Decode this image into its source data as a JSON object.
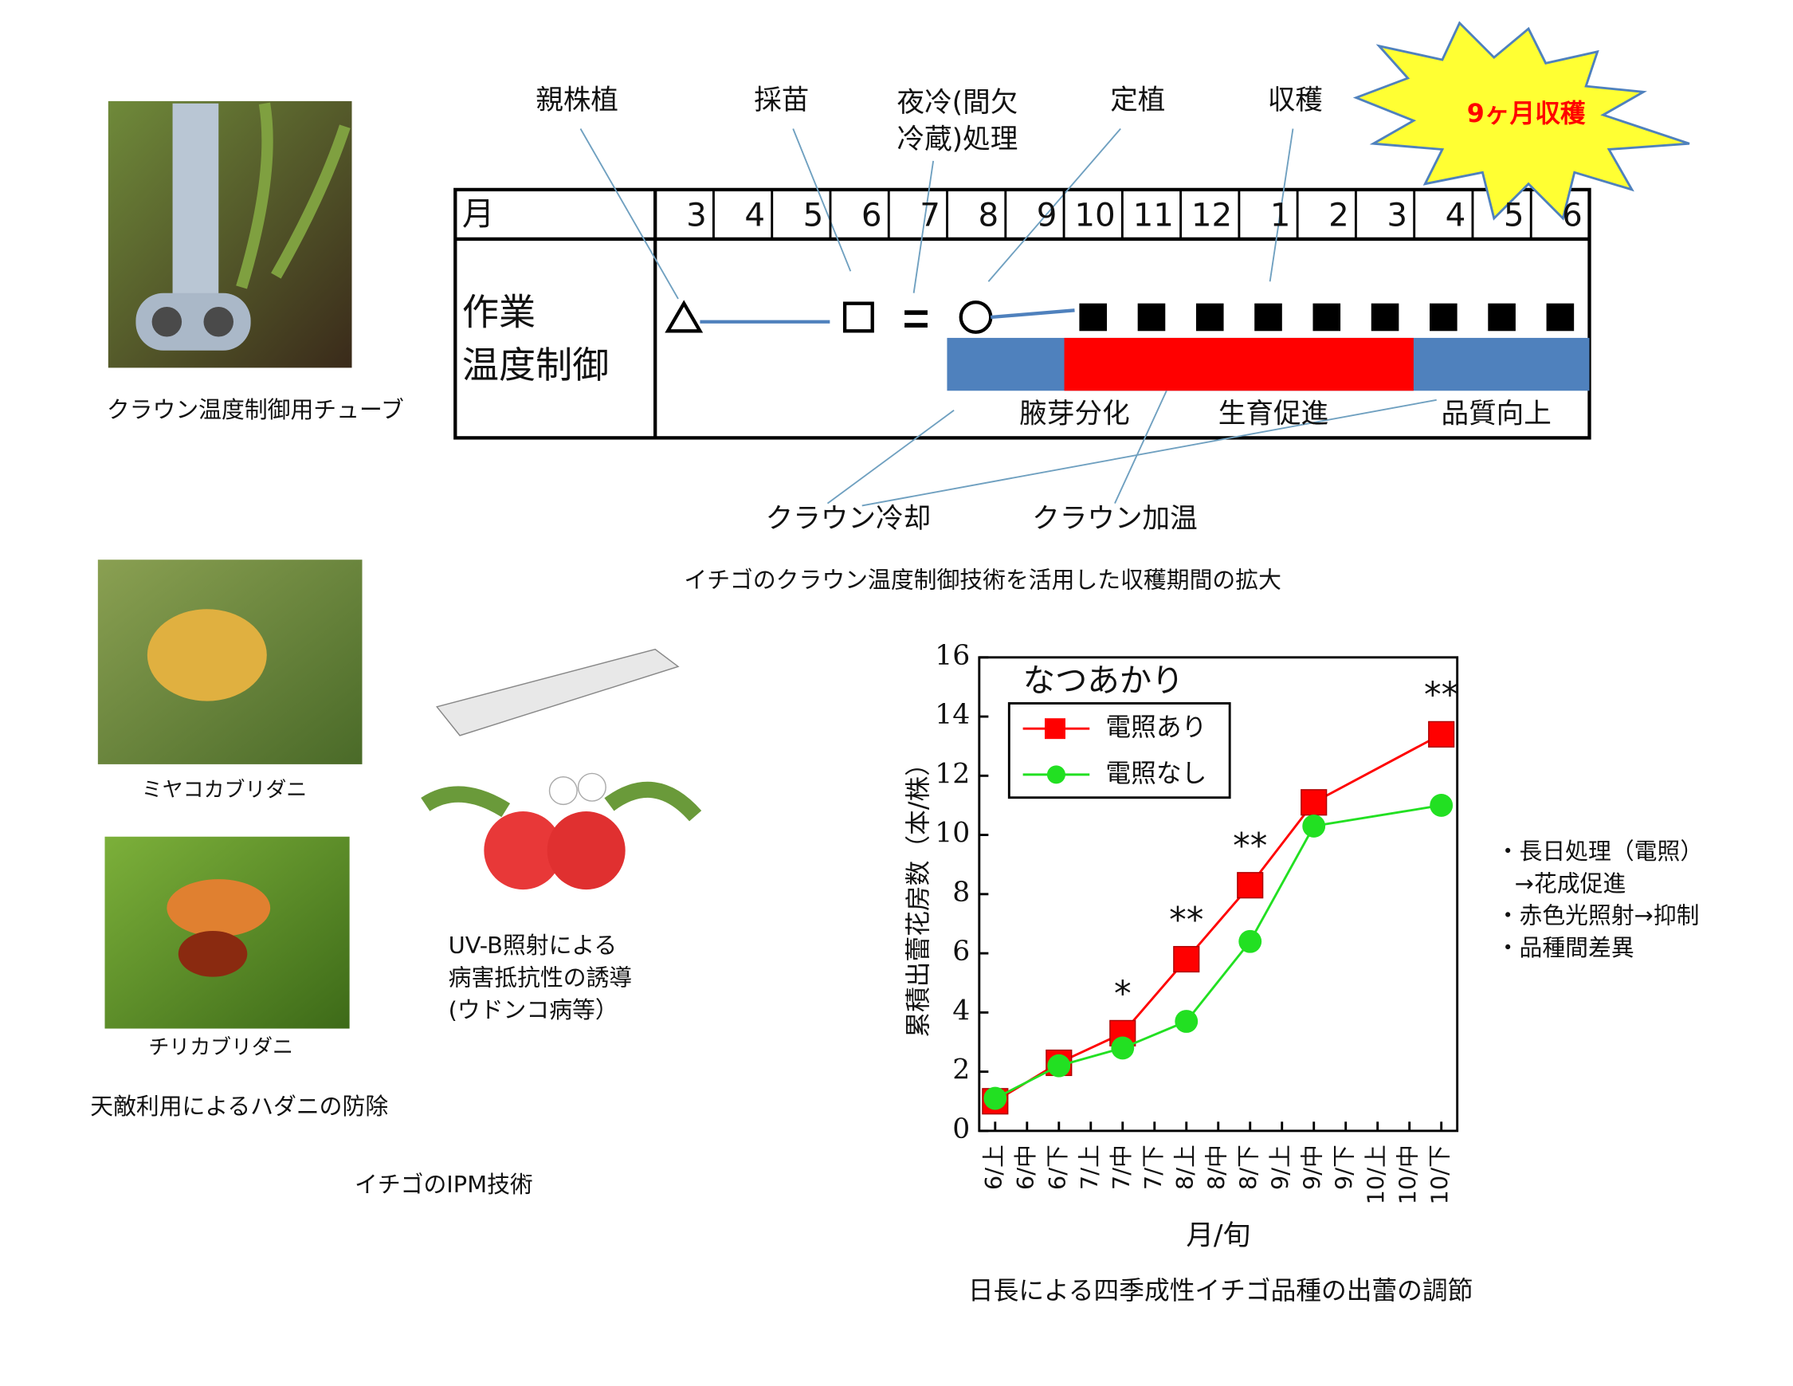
{
  "timeline": {
    "labels": [
      "親株植",
      "採苗",
      "定植",
      "収穫"
    ],
    "night_cool": [
      "夜冷(間欠",
      "冷蔵)処理"
    ],
    "burst": "9ヶ月収穫",
    "month_header": "月",
    "months": [
      "3",
      "4",
      "5",
      "6",
      "7",
      "8",
      "9",
      "10",
      "11",
      "12",
      "1",
      "2",
      "3",
      "4",
      "5",
      "6"
    ],
    "row_label": [
      "作業",
      "温度制御"
    ],
    "bands": [
      "腋芽分化",
      "生育促進",
      "品質向上"
    ],
    "controls": [
      "クラウン冷却",
      "クラウン加温"
    ],
    "photo_caption": "クラウン温度制御用チューブ",
    "caption": "イチゴのクラウン温度制御技術を活用した収穫期間の拡大"
  },
  "ipm": {
    "mite1": "ミヤコカブリダニ",
    "mite2": "チリカブリダニ",
    "mites_caption": "天敵利用によるハダニの防除",
    "uv": [
      "UV-B照射による",
      "病害抵抗性の誘導",
      "(ウドンコ病等）"
    ],
    "caption": "イチゴのIPM技術"
  },
  "chart_data": {
    "type": "line",
    "title": "なつあかり",
    "y_label": "累積出蕾花房数（本/株）",
    "x_label": "月/旬",
    "categories": [
      "6/上",
      "6/中",
      "6/下",
      "7/上",
      "7/中",
      "7/下",
      "8/上",
      "8/中",
      "8/下",
      "9/上",
      "9/中",
      "9/下",
      "10/上",
      "10/中",
      "10/下"
    ],
    "ylim": [
      0,
      16
    ],
    "yticks": [
      0,
      2,
      4,
      6,
      8,
      10,
      12,
      14,
      16
    ],
    "series": [
      {
        "name": "電照あり",
        "color": "#ff0000",
        "marker": "square",
        "x": [
          "6/上",
          "6/下",
          "7/中",
          "8/上",
          "8/下",
          "9/中",
          "10/下"
        ],
        "values": [
          1.0,
          2.3,
          3.3,
          5.8,
          8.3,
          11.1,
          13.4
        ]
      },
      {
        "name": "電照なし",
        "color": "#22e022",
        "marker": "circle",
        "x": [
          "6/上",
          "6/下",
          "7/中",
          "8/上",
          "8/下",
          "9/中",
          "10/下"
        ],
        "values": [
          1.1,
          2.2,
          2.8,
          3.7,
          6.4,
          10.3,
          11.0
        ]
      }
    ],
    "legend": "upper left",
    "annotations": [
      {
        "text": "*",
        "x": "7/中"
      },
      {
        "text": "**",
        "x": "8/上"
      },
      {
        "text": "**",
        "x": "8/下"
      },
      {
        "text": "**",
        "x": "10/下"
      }
    ],
    "notes": [
      "・長日処理（電照）",
      "→花成促進",
      "・赤色光照射→抑制",
      "・品種間差異"
    ],
    "caption": "日長による四季成性イチゴ品種の出蕾の調節"
  }
}
